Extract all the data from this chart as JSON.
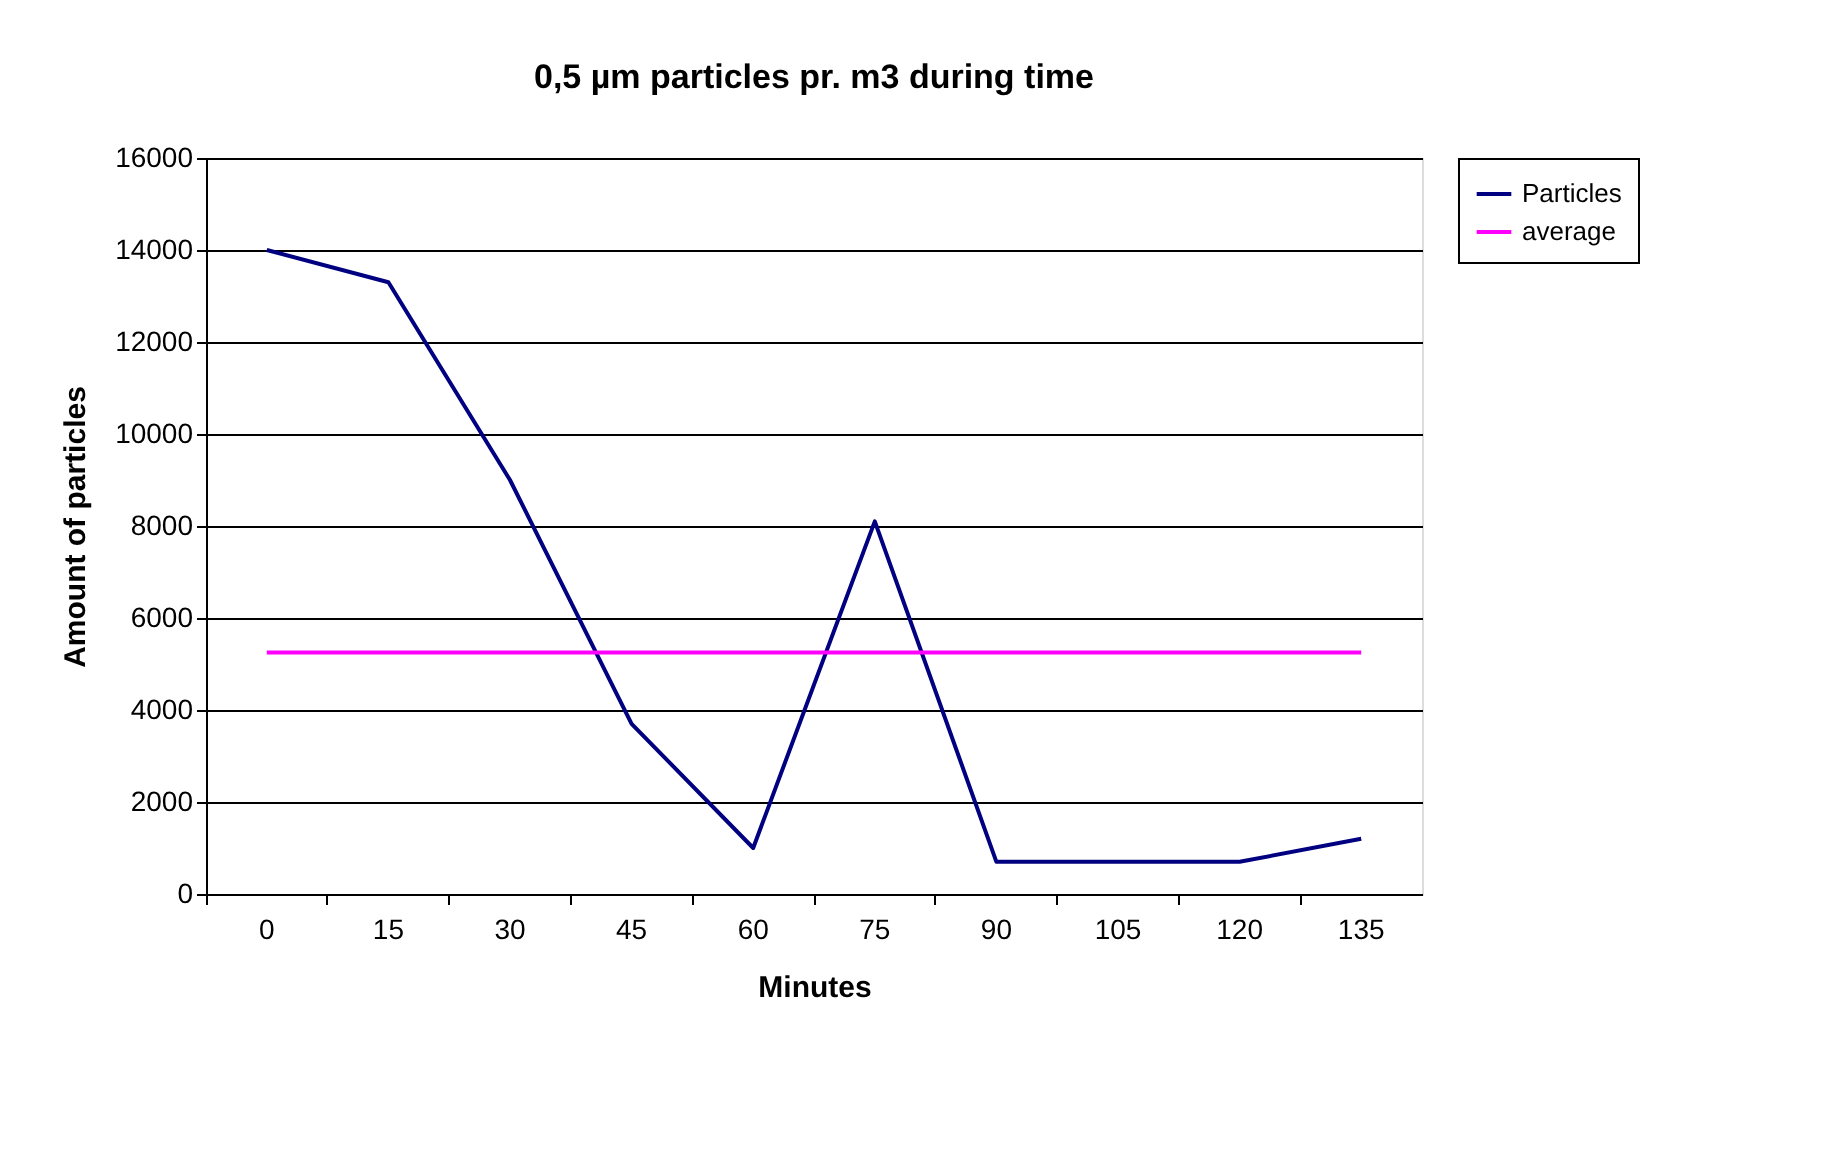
{
  "chart_data": {
    "type": "line",
    "title": "0,5 µm particles pr. m3 during time",
    "xlabel": "Minutes",
    "ylabel": "Amount of particles",
    "categories": [
      "0",
      "15",
      "30",
      "45",
      "60",
      "75",
      "90",
      "105",
      "120",
      "135"
    ],
    "series": [
      {
        "name": "Particles",
        "color": "#000080",
        "values": [
          14000,
          13300,
          9000,
          3700,
          1000,
          8100,
          700,
          700,
          700,
          1200
        ]
      },
      {
        "name": "average",
        "color": "#ff00ff",
        "values": [
          5250,
          5250,
          5250,
          5250,
          5250,
          5250,
          5250,
          5250,
          5250,
          5250
        ]
      }
    ],
    "ylim": [
      0,
      16000
    ],
    "yticks": [
      0,
      2000,
      4000,
      6000,
      8000,
      10000,
      12000,
      14000,
      16000
    ],
    "grid": "y",
    "legend": "right",
    "marker": "none",
    "line_style": "solid"
  }
}
